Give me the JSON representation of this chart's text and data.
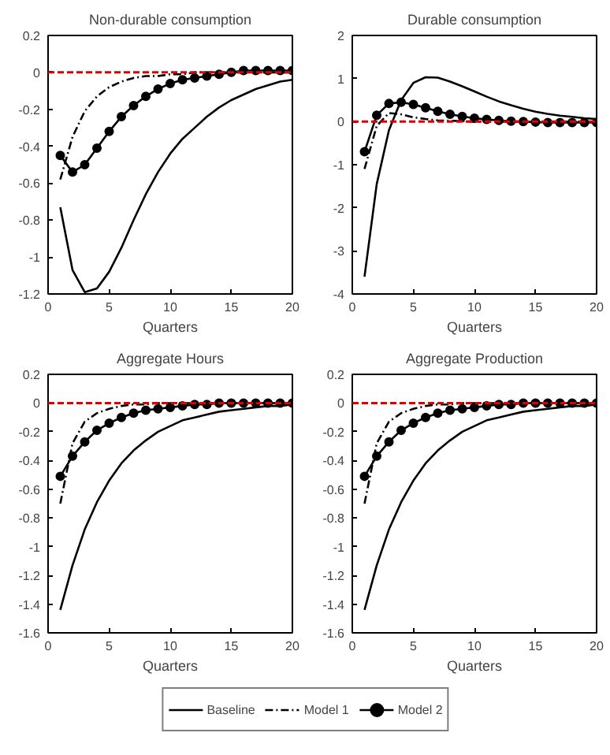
{
  "chart_data": [
    {
      "type": "line",
      "title": "Non-durable consumption",
      "xlabel": "Quarters",
      "x": [
        1,
        2,
        3,
        4,
        5,
        6,
        7,
        8,
        9,
        10,
        11,
        12,
        13,
        14,
        15,
        16,
        17,
        18,
        19,
        20
      ],
      "xlim": [
        0,
        20
      ],
      "xticks": [
        0,
        5,
        10,
        15,
        20
      ],
      "ylim": [
        -1.2,
        0.2
      ],
      "yticks": [
        -1.2,
        -1,
        -0.8,
        -0.6,
        -0.4,
        -0.2,
        0,
        0.2
      ],
      "grid": false,
      "legend": "bottom",
      "series": [
        {
          "name": "Baseline",
          "color": "#000000",
          "line_style": "solid",
          "marker": "none",
          "values": [
            -0.73,
            -1.07,
            -1.19,
            -1.17,
            -1.08,
            -0.95,
            -0.8,
            -0.66,
            -0.54,
            -0.44,
            -0.36,
            -0.3,
            -0.24,
            -0.19,
            -0.15,
            -0.12,
            -0.09,
            -0.07,
            -0.05,
            -0.04
          ]
        },
        {
          "name": "Model 1",
          "color": "#000000",
          "line_style": "dashdot",
          "marker": "none",
          "values": [
            -0.58,
            -0.35,
            -0.21,
            -0.13,
            -0.08,
            -0.05,
            -0.03,
            -0.02,
            -0.02,
            -0.01,
            -0.01,
            0,
            0,
            0,
            0,
            0,
            0,
            0,
            0,
            0
          ]
        },
        {
          "name": "Model 2",
          "color": "#000000",
          "line_style": "solid",
          "marker": "circle",
          "values": [
            -0.45,
            -0.54,
            -0.5,
            -0.41,
            -0.32,
            -0.24,
            -0.18,
            -0.13,
            -0.09,
            -0.06,
            -0.04,
            -0.03,
            -0.02,
            -0.01,
            0,
            0.01,
            0.01,
            0.01,
            0.01,
            0.01
          ]
        }
      ],
      "ref_lines": [
        {
          "axis": "y",
          "value": 0,
          "color": "#e00000",
          "line_style": "dashed"
        }
      ]
    },
    {
      "type": "line",
      "title": "Durable consumption",
      "xlabel": "Quarters",
      "x": [
        1,
        2,
        3,
        4,
        5,
        6,
        7,
        8,
        9,
        10,
        11,
        12,
        13,
        14,
        15,
        16,
        17,
        18,
        19,
        20
      ],
      "xlim": [
        0,
        20
      ],
      "xticks": [
        0,
        5,
        10,
        15,
        20
      ],
      "ylim": [
        -4,
        2
      ],
      "yticks": [
        -4,
        -3,
        -2,
        -1,
        0,
        1,
        2
      ],
      "grid": false,
      "series": [
        {
          "color": "#000000",
          "line_style": "solid",
          "marker": "none",
          "values": [
            -3.6,
            -1.45,
            -0.2,
            0.5,
            0.9,
            1.03,
            1.02,
            0.93,
            0.82,
            0.7,
            0.58,
            0.47,
            0.38,
            0.3,
            0.23,
            0.18,
            0.14,
            0.11,
            0.08,
            0.06
          ]
        },
        {
          "color": "#000000",
          "line_style": "dashdot",
          "marker": "none",
          "values": [
            -1.1,
            -0.1,
            0.2,
            0.17,
            0.1,
            0.06,
            0.03,
            0.02,
            0.01,
            0,
            0,
            0,
            0,
            0,
            0,
            0,
            0,
            0,
            0,
            0
          ]
        },
        {
          "color": "#000000",
          "line_style": "solid",
          "marker": "circle",
          "values": [
            -0.7,
            0.15,
            0.42,
            0.45,
            0.4,
            0.32,
            0.24,
            0.17,
            0.12,
            0.08,
            0.05,
            0.03,
            0.01,
            0,
            -0.01,
            -0.02,
            -0.02,
            -0.02,
            -0.02,
            -0.02
          ]
        }
      ],
      "ref_lines": [
        {
          "axis": "y",
          "value": 0,
          "color": "#e00000",
          "line_style": "dashed"
        }
      ]
    },
    {
      "type": "line",
      "title": "Aggregate Hours",
      "xlabel": "Quarters",
      "x": [
        1,
        2,
        3,
        4,
        5,
        6,
        7,
        8,
        9,
        10,
        11,
        12,
        13,
        14,
        15,
        16,
        17,
        18,
        19,
        20
      ],
      "xlim": [
        0,
        20
      ],
      "xticks": [
        0,
        5,
        10,
        15,
        20
      ],
      "ylim": [
        -1.6,
        0.2
      ],
      "yticks": [
        -1.6,
        -1.4,
        -1.2,
        -1,
        -0.8,
        -0.6,
        -0.4,
        -0.2,
        0,
        0.2
      ],
      "grid": false,
      "series": [
        {
          "color": "#000000",
          "line_style": "solid",
          "marker": "none",
          "values": [
            -1.44,
            -1.13,
            -0.88,
            -0.69,
            -0.54,
            -0.42,
            -0.33,
            -0.26,
            -0.2,
            -0.16,
            -0.12,
            -0.1,
            -0.08,
            -0.06,
            -0.05,
            -0.04,
            -0.03,
            -0.02,
            -0.02,
            -0.01
          ]
        },
        {
          "color": "#000000",
          "line_style": "dashdot",
          "marker": "none",
          "values": [
            -0.7,
            -0.28,
            -0.13,
            -0.07,
            -0.04,
            -0.02,
            -0.01,
            -0.01,
            0,
            0,
            0,
            0,
            0,
            0,
            0,
            0,
            0,
            0,
            0,
            0
          ]
        },
        {
          "color": "#000000",
          "line_style": "solid",
          "marker": "circle",
          "values": [
            -0.51,
            -0.37,
            -0.27,
            -0.19,
            -0.14,
            -0.1,
            -0.07,
            -0.05,
            -0.04,
            -0.03,
            -0.02,
            -0.01,
            -0.01,
            0,
            0,
            0,
            0,
            0,
            0,
            0
          ]
        }
      ],
      "ref_lines": [
        {
          "axis": "y",
          "value": 0,
          "color": "#e00000",
          "line_style": "dashed"
        }
      ]
    },
    {
      "type": "line",
      "title": "Aggregate Production",
      "xlabel": "Quarters",
      "x": [
        1,
        2,
        3,
        4,
        5,
        6,
        7,
        8,
        9,
        10,
        11,
        12,
        13,
        14,
        15,
        16,
        17,
        18,
        19,
        20
      ],
      "xlim": [
        0,
        20
      ],
      "xticks": [
        0,
        5,
        10,
        15,
        20
      ],
      "ylim": [
        -1.6,
        0.2
      ],
      "yticks": [
        -1.6,
        -1.4,
        -1.2,
        -1,
        -0.8,
        -0.6,
        -0.4,
        -0.2,
        0,
        0.2
      ],
      "grid": false,
      "series": [
        {
          "color": "#000000",
          "line_style": "solid",
          "marker": "none",
          "values": [
            -1.44,
            -1.13,
            -0.88,
            -0.69,
            -0.54,
            -0.42,
            -0.33,
            -0.26,
            -0.2,
            -0.16,
            -0.12,
            -0.1,
            -0.08,
            -0.06,
            -0.05,
            -0.04,
            -0.03,
            -0.02,
            -0.02,
            -0.01
          ]
        },
        {
          "color": "#000000",
          "line_style": "dashdot",
          "marker": "none",
          "values": [
            -0.7,
            -0.28,
            -0.13,
            -0.07,
            -0.04,
            -0.02,
            -0.01,
            -0.01,
            0,
            0,
            0,
            0,
            0,
            0,
            0,
            0,
            0,
            0,
            0,
            0
          ]
        },
        {
          "color": "#000000",
          "line_style": "solid",
          "marker": "circle",
          "values": [
            -0.51,
            -0.37,
            -0.27,
            -0.19,
            -0.14,
            -0.1,
            -0.07,
            -0.05,
            -0.04,
            -0.03,
            -0.02,
            -0.01,
            -0.01,
            0,
            0,
            0,
            0,
            0,
            0,
            0
          ]
        }
      ],
      "ref_lines": [
        {
          "axis": "y",
          "value": 0,
          "color": "#e00000",
          "line_style": "dashed"
        }
      ]
    }
  ]
}
